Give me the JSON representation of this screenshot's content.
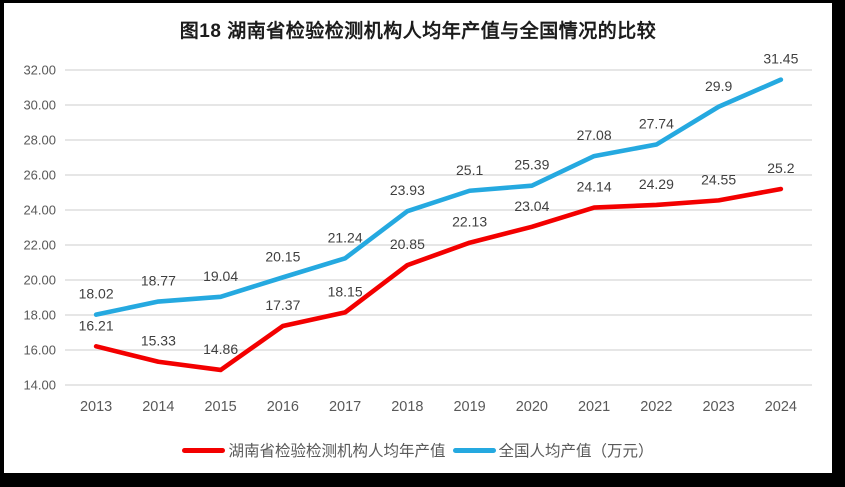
{
  "chart_data": {
    "type": "line",
    "title": "图18 湖南省检验检测机构人均年产值与全国情况的比较",
    "categories": [
      "2013",
      "2014",
      "2015",
      "2016",
      "2017",
      "2018",
      "2019",
      "2020",
      "2021",
      "2022",
      "2023",
      "2024"
    ],
    "series": [
      {
        "name": "湖南省检验检测机构人均年产值",
        "color": "#f30000",
        "values": [
          16.21,
          15.33,
          14.86,
          17.37,
          18.15,
          20.85,
          22.13,
          23.04,
          24.14,
          24.29,
          24.55,
          25.2
        ]
      },
      {
        "name": "全国人均产值（万元）",
        "color": "#25a9e0",
        "values": [
          18.02,
          18.77,
          19.04,
          20.15,
          21.24,
          23.93,
          25.1,
          25.39,
          27.08,
          27.74,
          29.9,
          31.45
        ]
      }
    ],
    "ylim": [
      14,
      32
    ],
    "ytick_step": 2,
    "ytick_labels": [
      "14.00",
      "16.00",
      "18.00",
      "20.00",
      "22.00",
      "24.00",
      "26.00",
      "28.00",
      "30.00",
      "32.00"
    ],
    "grid": true,
    "legend_position": "bottom",
    "style": {
      "grid_color": "#e2e2e2",
      "axis_text_color": "#595959",
      "data_label_color": "#404040",
      "title_color": "#1c1c1c",
      "legend_text_color": "#595959",
      "frame_color": "#000000",
      "background": "#ffffff"
    }
  }
}
